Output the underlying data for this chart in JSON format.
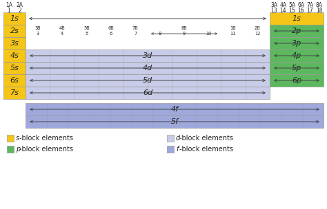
{
  "colors": {
    "s_block": "#F5C518",
    "p_block": "#5BB85D",
    "d_block": "#C8CCE8",
    "f_block": "#9FA8DA",
    "border": "#999999",
    "text": "#222222",
    "arrow": "#444444",
    "bg": "#FFFFFF"
  },
  "legend": [
    {
      "color": "#F5C518",
      "letter": "s",
      "label": "-block elements",
      "col": 0
    },
    {
      "color": "#5BB85D",
      "letter": "p",
      "label": "-block elements",
      "col": 0
    },
    {
      "color": "#C8CCE8",
      "letter": "d",
      "label": "-block elements",
      "col": 1
    },
    {
      "color": "#9FA8DA",
      "letter": "f",
      "label": "-block elements",
      "col": 1
    }
  ],
  "group_labels_left": [
    [
      "1A",
      "1"
    ],
    [
      "2A",
      "2"
    ]
  ],
  "group_labels_right": [
    [
      "3A",
      "13"
    ],
    [
      "4A",
      "14"
    ],
    [
      "5A",
      "15"
    ],
    [
      "6A",
      "16"
    ],
    [
      "7A",
      "17"
    ],
    [
      "8A",
      "18"
    ]
  ],
  "d_labels": [
    "3B",
    "4B",
    "5B",
    "6B",
    "7B",
    "",
    "8B",
    "",
    "1B",
    "2B"
  ],
  "d_nums": [
    "3",
    "4",
    "5",
    "6",
    "7",
    "8",
    "9",
    "10",
    "11",
    "12"
  ],
  "orbital_rows": [
    {
      "s": "1s",
      "d": null,
      "p": "1s",
      "row": 0
    },
    {
      "s": "2s",
      "d": null,
      "p": "2p",
      "row": 1
    },
    {
      "s": "3s",
      "d": null,
      "p": "3p",
      "row": 2
    },
    {
      "s": "4s",
      "d": "3d",
      "p": "4p",
      "row": 3
    },
    {
      "s": "5s",
      "d": "4d",
      "p": "5p",
      "row": 4
    },
    {
      "s": "6s",
      "d": "5d",
      "p": "6p",
      "row": 5
    },
    {
      "s": "7s",
      "d": "6d",
      "p": null,
      "row": 6
    }
  ],
  "f_rows": [
    "4f",
    "5f"
  ]
}
